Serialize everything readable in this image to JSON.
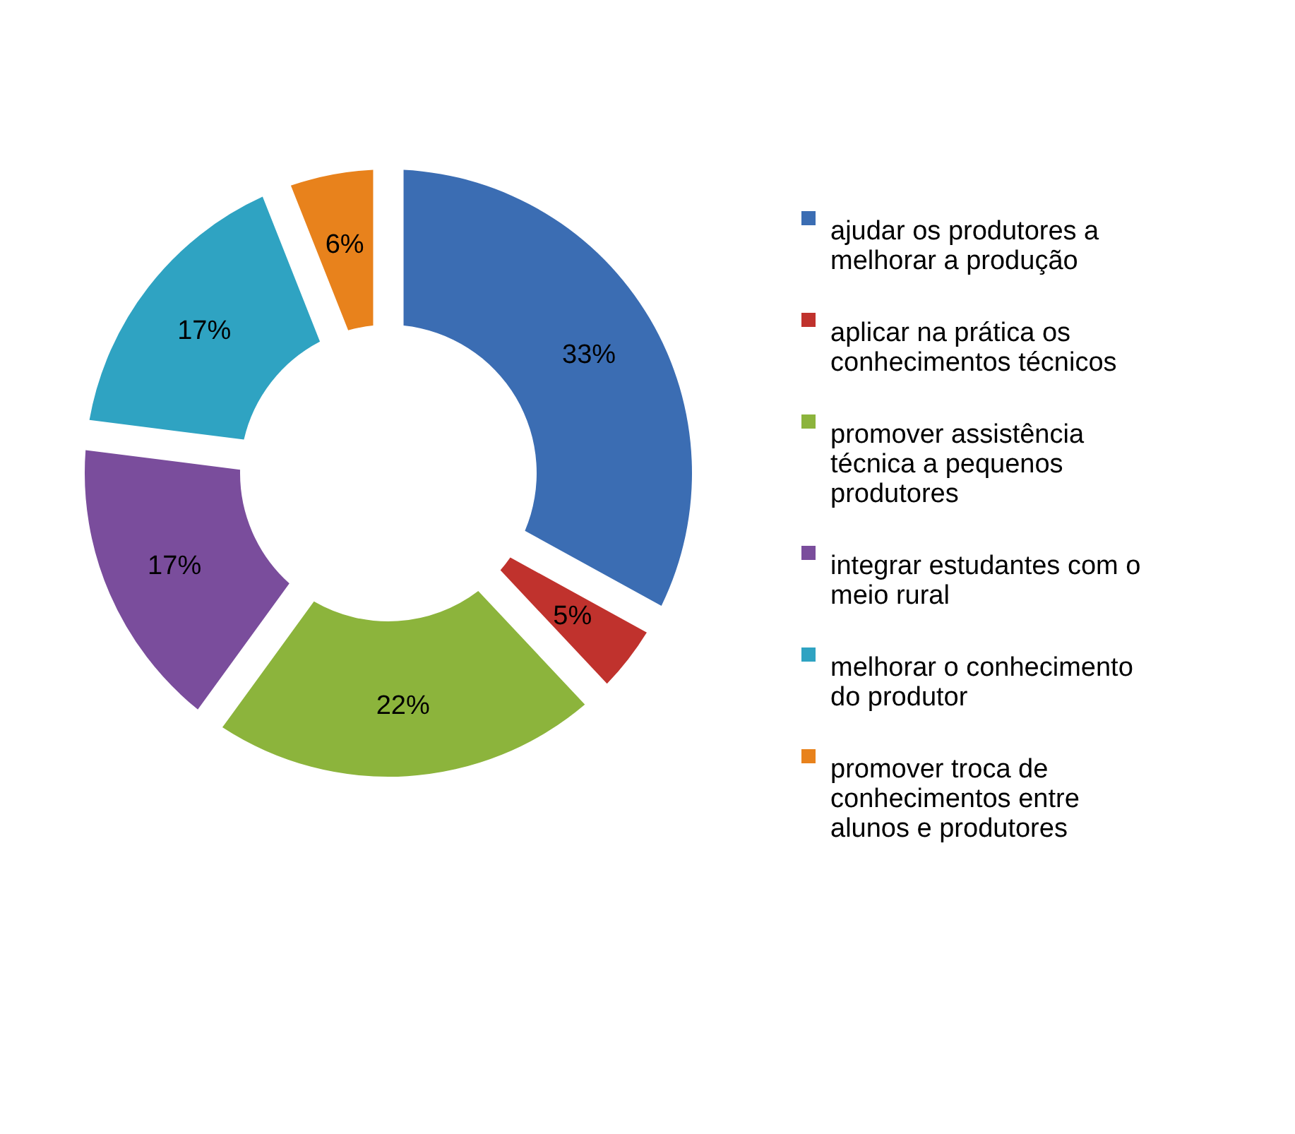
{
  "chart_data": {
    "type": "donut",
    "categories": [
      "ajudar os produtores a melhorar a produção",
      "aplicar na prática os conhecimentos técnicos",
      "promover assistência técnica a pequenos produtores",
      "integrar estudantes com o meio rural",
      "melhorar o conhecimento do produtor",
      "promover troca de conhecimentos entre alunos e produtores"
    ],
    "values": [
      33,
      5,
      22,
      17,
      17,
      6
    ],
    "colors": [
      "#3b6db3",
      "#c0322d",
      "#8cb43c",
      "#7a4d9c",
      "#2fa3c2",
      "#e8821c"
    ],
    "value_labels": [
      "33%",
      "5%",
      "22%",
      "17%",
      "17%",
      "6%"
    ],
    "legend": "right"
  }
}
